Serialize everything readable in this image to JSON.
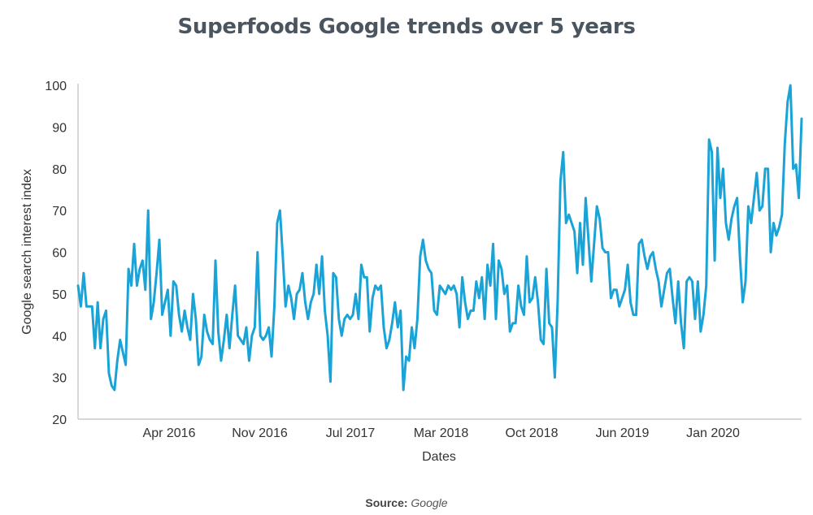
{
  "title": "Superfoods Google trends over 5 years",
  "source": {
    "label": "Source:",
    "value": "Google"
  },
  "colors": {
    "line": "#1aa3d6",
    "axis": "#cccccc",
    "text": "#333333",
    "title": "#4a5560"
  },
  "chart_data": {
    "type": "line",
    "title": "Superfoods Google trends over 5 years",
    "xlabel": "Dates",
    "ylabel": "Google search interest index",
    "ylim": [
      20,
      100
    ],
    "yticks": [
      20,
      30,
      40,
      50,
      60,
      70,
      80,
      90,
      100
    ],
    "xticks": [
      "Apr 2016",
      "Nov 2016",
      "Jul 2017",
      "Mar 2018",
      "Oct 2018",
      "Jun 2019",
      "Jan 2020"
    ],
    "grid": false,
    "series": [
      {
        "values": [
          52,
          47,
          55,
          47,
          47,
          47,
          37,
          48,
          37,
          44,
          46,
          31,
          28,
          27,
          34,
          39,
          36,
          33,
          56,
          52,
          62,
          52,
          56,
          58,
          51,
          70,
          44,
          48,
          55,
          63,
          45,
          48,
          51,
          40,
          53,
          52,
          45,
          41,
          46,
          42,
          39,
          50,
          44,
          33,
          35,
          45,
          41,
          39,
          38,
          58,
          41,
          34,
          39,
          45,
          37,
          45,
          52,
          40,
          39,
          38,
          42,
          34,
          40,
          42,
          60,
          40,
          39,
          40,
          42,
          35,
          47,
          67,
          70,
          59,
          47,
          52,
          49,
          44,
          50,
          51,
          55,
          48,
          44,
          48,
          50,
          57,
          50,
          59,
          46,
          40,
          29,
          55,
          54,
          44,
          40,
          44,
          45,
          44,
          45,
          50,
          44,
          57,
          54,
          54,
          41,
          49,
          52,
          51,
          52,
          42,
          37,
          39,
          43,
          48,
          42,
          46,
          27,
          35,
          34,
          42,
          37,
          44,
          59,
          63,
          58,
          56,
          55,
          46,
          45,
          52,
          51,
          50,
          52,
          51,
          52,
          50,
          42,
          54,
          48,
          44,
          46,
          46,
          53,
          49,
          54,
          44,
          57,
          52,
          62,
          44,
          58,
          56,
          50,
          52,
          41,
          43,
          43,
          52,
          47,
          45,
          59,
          48,
          49,
          54,
          48,
          39,
          38,
          56,
          43,
          42,
          30,
          48,
          77,
          84,
          67,
          69,
          67,
          65,
          55,
          67,
          57,
          73,
          63,
          53,
          62,
          71,
          68,
          61,
          60,
          60,
          49,
          51,
          51,
          47,
          49,
          51,
          57,
          48,
          45,
          45,
          62,
          63,
          59,
          56,
          59,
          60,
          56,
          53,
          47,
          51,
          55,
          56,
          49,
          43,
          53,
          43,
          37,
          53,
          54,
          53,
          44,
          53,
          41,
          45,
          52,
          87,
          84,
          58,
          85,
          73,
          80,
          67,
          63,
          68,
          71,
          73,
          59,
          48,
          53,
          71,
          67,
          73,
          79,
          70,
          71,
          80,
          80,
          60,
          67,
          64,
          66,
          69,
          86,
          96,
          100,
          80,
          81,
          73,
          92
        ]
      }
    ]
  }
}
